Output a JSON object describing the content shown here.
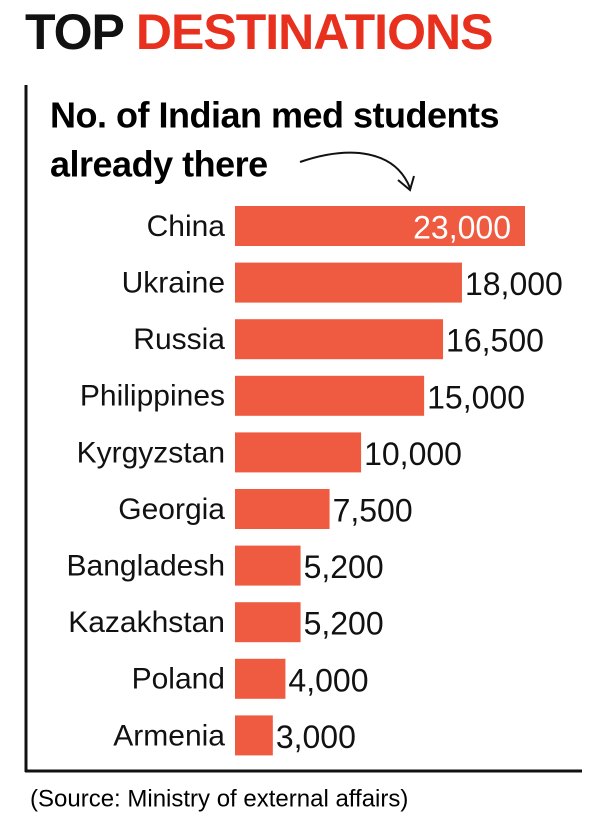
{
  "chart_data": {
    "type": "bar",
    "orientation": "horizontal",
    "title_parts": [
      "TOP",
      "DESTINATIONS"
    ],
    "title_colors": [
      "#111111",
      "#e8301f"
    ],
    "subtitle_lines": [
      "No. of Indian med students",
      "already there"
    ],
    "categories": [
      "China",
      "Ukraine",
      "Russia",
      "Philippines",
      "Kyrgyzstan",
      "Georgia",
      "Bangladesh",
      "Kazakhstan",
      "Poland",
      "Armenia"
    ],
    "values": [
      23000,
      18000,
      16500,
      15000,
      10000,
      7500,
      5200,
      5200,
      4000,
      3000
    ],
    "value_labels": [
      "23,000",
      "18,000",
      "16,500",
      "15,000",
      "10,000",
      "7,500",
      "5,200",
      "5,200",
      "4,000",
      "3,000"
    ],
    "color": "#ef5b40",
    "source": "(Source: Ministry of external affairs)"
  }
}
